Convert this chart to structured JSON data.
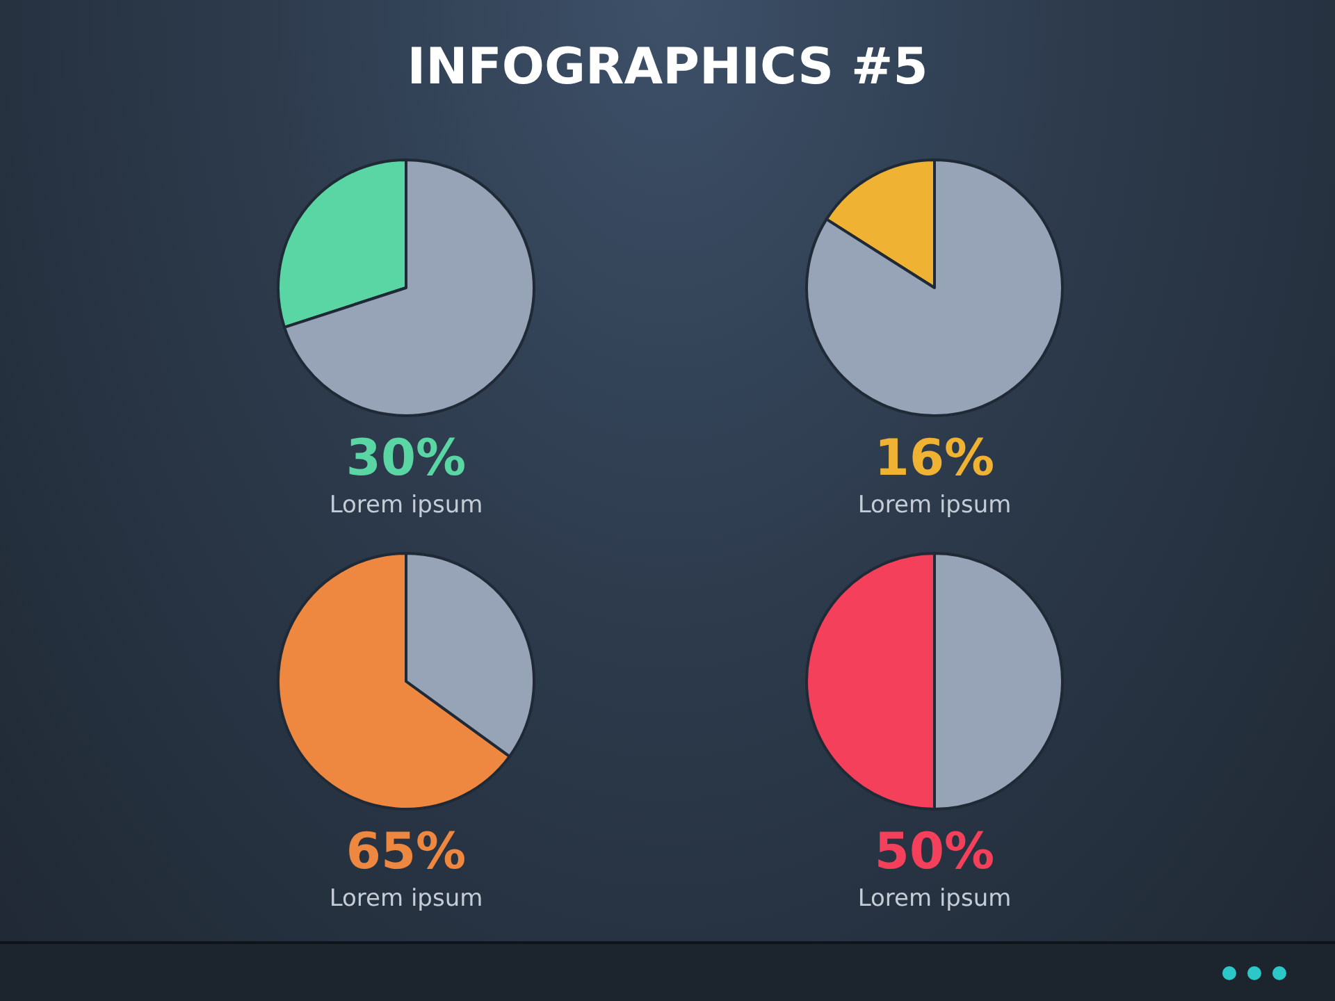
{
  "chart_data": [
    {
      "type": "pie",
      "title": "INFOGRAPHICS #5",
      "categories": [
        null,
        null
      ],
      "values": [
        30,
        70
      ],
      "colors": [
        "#5ad6a4",
        "#97a3b6"
      ],
      "annotations": [
        "30%",
        "Lorem ipsum"
      ]
    },
    {
      "type": "pie",
      "categories": [
        null,
        null
      ],
      "values": [
        16,
        84
      ],
      "colors": [
        "#f0b232",
        "#97a3b6"
      ],
      "annotations": [
        "16%",
        "Lorem ipsum"
      ]
    },
    {
      "type": "pie",
      "categories": [
        null,
        null
      ],
      "values": [
        65,
        35
      ],
      "colors": [
        "#ee8740",
        "#97a3b6"
      ],
      "annotations": [
        "65%",
        "Lorem ipsum"
      ]
    },
    {
      "type": "pie",
      "categories": [
        null,
        null
      ],
      "values": [
        50,
        50
      ],
      "colors": [
        "#f4405a",
        "#97a3b6"
      ],
      "annotations": [
        "50%",
        "Lorem ipsum"
      ]
    }
  ]
}
